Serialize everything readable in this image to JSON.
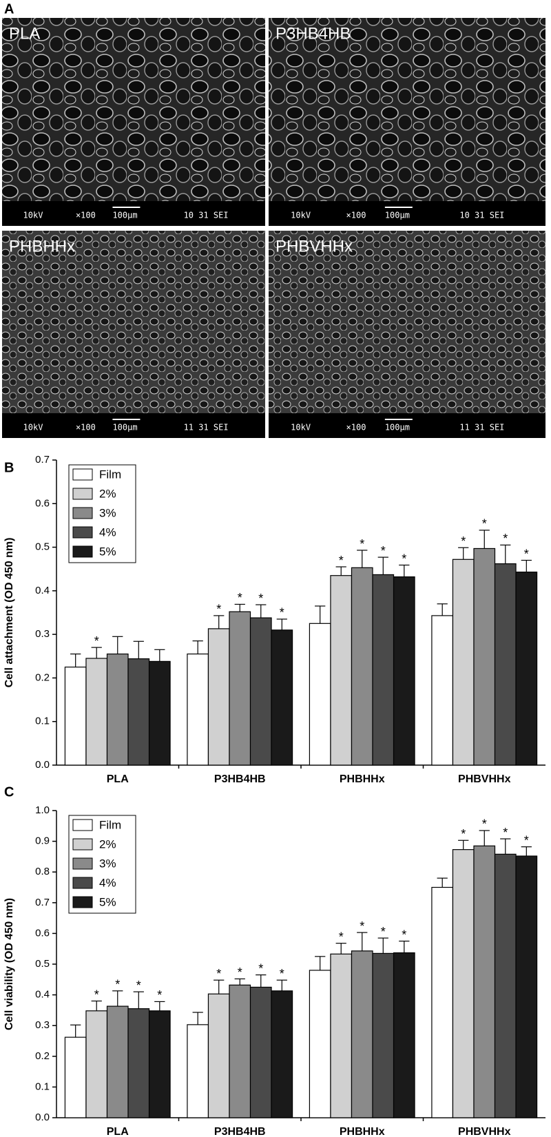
{
  "figure_a": {
    "panel_label": "A",
    "images": [
      {
        "label": "PLA",
        "info": [
          "10kV",
          "×100",
          "100μm",
          "10 31 SEI"
        ]
      },
      {
        "label": "P3HB4HB",
        "info": [
          "10kV",
          "×100",
          "100μm",
          "10 31 SEI"
        ]
      },
      {
        "label": "PHBHHx",
        "info": [
          "10kV",
          "×100",
          "100μm",
          "11 31 SEI"
        ]
      },
      {
        "label": "PHBVHHx",
        "info": [
          "10kV",
          "×100",
          "100μm",
          "11 31 SEI"
        ]
      }
    ]
  },
  "chart_data": [
    {
      "type": "bar",
      "panel_label": "B",
      "y_label": "Cell attachment (OD 450 nm)",
      "categories": [
        "PLA",
        "P3HB4HB",
        "PHBHHx",
        "PHBVHHx"
      ],
      "series": [
        {
          "name": "Film",
          "color": "#ffffff",
          "values": [
            0.225,
            0.255,
            0.325,
            0.343
          ],
          "errors": [
            0.03,
            0.03,
            0.04,
            0.027
          ],
          "annotations": [
            null,
            null,
            null,
            null
          ]
        },
        {
          "name": "2%",
          "color": "#d0d0d0",
          "values": [
            0.245,
            0.313,
            0.435,
            0.472
          ],
          "errors": [
            0.025,
            0.03,
            0.02,
            0.027
          ],
          "annotations": [
            "*",
            "*",
            "*",
            "*"
          ]
        },
        {
          "name": "3%",
          "color": "#8a8a8a",
          "values": [
            0.255,
            0.352,
            0.453,
            0.497
          ],
          "errors": [
            0.04,
            0.017,
            0.04,
            0.042
          ],
          "annotations": [
            null,
            "*",
            "*",
            "*"
          ]
        },
        {
          "name": "4%",
          "color": "#4a4a4a",
          "values": [
            0.244,
            0.338,
            0.437,
            0.462
          ],
          "errors": [
            0.04,
            0.03,
            0.04,
            0.043
          ],
          "annotations": [
            null,
            "*",
            "*",
            "*"
          ]
        },
        {
          "name": "5%",
          "color": "#1a1a1a",
          "values": [
            0.238,
            0.31,
            0.432,
            0.443
          ],
          "errors": [
            0.027,
            0.025,
            0.027,
            0.027
          ],
          "annotations": [
            null,
            "*",
            "*",
            "*"
          ]
        }
      ],
      "ylim": [
        0,
        0.7
      ],
      "yticks": [
        {
          "value": 0,
          "label": "0.0"
        },
        0.1,
        0.2,
        0.3,
        0.4,
        0.5,
        0.6,
        0.7
      ],
      "legend": "upper left"
    },
    {
      "type": "bar",
      "panel_label": "C",
      "y_label": "Cell viability (OD 450 nm)",
      "categories": [
        "PLA",
        "P3HB4HB",
        "PHBHHx",
        "PHBVHHx"
      ],
      "series": [
        {
          "name": "Film",
          "color": "#ffffff",
          "values": [
            0.262,
            0.303,
            0.48,
            0.75
          ],
          "errors": [
            0.04,
            0.04,
            0.045,
            0.03
          ],
          "annotations": [
            null,
            null,
            null,
            null
          ]
        },
        {
          "name": "2%",
          "color": "#d0d0d0",
          "values": [
            0.348,
            0.403,
            0.533,
            0.873
          ],
          "errors": [
            0.032,
            0.045,
            0.035,
            0.03
          ],
          "annotations": [
            "*",
            "*",
            "*",
            "*"
          ]
        },
        {
          "name": "3%",
          "color": "#8a8a8a",
          "values": [
            0.363,
            0.432,
            0.543,
            0.885
          ],
          "errors": [
            0.05,
            0.02,
            0.06,
            0.05
          ],
          "annotations": [
            "*",
            "*",
            "*",
            "*"
          ]
        },
        {
          "name": "4%",
          "color": "#4a4a4a",
          "values": [
            0.355,
            0.425,
            0.535,
            0.858
          ],
          "errors": [
            0.055,
            0.04,
            0.05,
            0.05
          ],
          "annotations": [
            "*",
            "*",
            "*",
            "*"
          ]
        },
        {
          "name": "5%",
          "color": "#1a1a1a",
          "values": [
            0.348,
            0.413,
            0.537,
            0.852
          ],
          "errors": [
            0.03,
            0.035,
            0.038,
            0.03
          ],
          "annotations": [
            "*",
            "*",
            "*",
            "*"
          ]
        }
      ],
      "ylim": [
        0,
        1.0
      ],
      "yticks": [
        {
          "value": 0,
          "label": "0.0"
        },
        0.1,
        0.2,
        0.3,
        0.4,
        0.5,
        0.6,
        0.7,
        0.8,
        0.9,
        {
          "value": 1,
          "label": "1.0"
        }
      ],
      "legend": "upper left"
    }
  ]
}
